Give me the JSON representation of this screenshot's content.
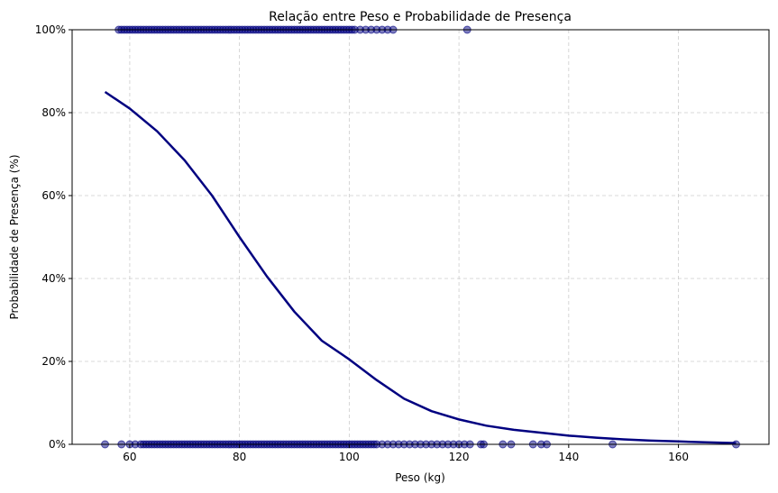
{
  "chart_data": {
    "type": "scatter",
    "title": "Relação entre Peso e Probabilidade de Presença",
    "xlabel": "Peso (kg)",
    "ylabel": "Probabilidade de Presença (%)",
    "xlim": [
      49.5,
      176.5
    ],
    "ylim": [
      0,
      1
    ],
    "x_ticks": [
      60,
      80,
      100,
      120,
      140,
      160
    ],
    "x_tick_labels": [
      "60",
      "80",
      "100",
      "120",
      "140",
      "160"
    ],
    "y_ticks": [
      0,
      0.2,
      0.4,
      0.6,
      0.8,
      1.0
    ],
    "y_tick_labels": [
      "0%",
      "20%",
      "40%",
      "60%",
      "80%",
      "100%"
    ],
    "grid": true,
    "colors": {
      "points": "#000080",
      "curve": "#000080",
      "grid": "#cccccc"
    },
    "series": [
      {
        "type": "scatter",
        "y": 1,
        "x": [
          58,
          58.5,
          59,
          59.5,
          60,
          60.5,
          61,
          61.5,
          62,
          62.5,
          63,
          63.5,
          64,
          64.5,
          65,
          65.5,
          66,
          66.5,
          67,
          67.5,
          68,
          68.5,
          69,
          69.5,
          70,
          70.5,
          71,
          71.5,
          72,
          72.5,
          73,
          73.5,
          74,
          74.5,
          75,
          75.5,
          76,
          76.5,
          77,
          77.5,
          78,
          78.5,
          79,
          79.5,
          80,
          80.5,
          81,
          81.5,
          82,
          82.5,
          83,
          83.5,
          84,
          84.5,
          85,
          85.5,
          86,
          86.5,
          87,
          87.5,
          88,
          88.5,
          89,
          89.5,
          90,
          90.5,
          91,
          91.5,
          92,
          92.5,
          93,
          93.5,
          94,
          94.5,
          95,
          95.5,
          96,
          96.5,
          97,
          97.5,
          98,
          98.5,
          99,
          99.5,
          100,
          100.5,
          101,
          102,
          103,
          104,
          105,
          106,
          107,
          108,
          121.5
        ]
      },
      {
        "type": "scatter",
        "y": 0,
        "x": [
          55.5,
          58.5,
          60,
          61,
          62,
          62.5,
          63,
          63.5,
          64,
          64.5,
          65,
          65.5,
          66,
          66.5,
          67,
          67.5,
          68,
          68.5,
          69,
          69.5,
          70,
          70.5,
          71,
          71.5,
          72,
          72.5,
          73,
          73.5,
          74,
          74.5,
          75,
          75.5,
          76,
          76.5,
          77,
          77.5,
          78,
          78.5,
          79,
          79.5,
          80,
          80.5,
          81,
          81.5,
          82,
          82.5,
          83,
          83.5,
          84,
          84.5,
          85,
          85.5,
          86,
          86.5,
          87,
          87.5,
          88,
          88.5,
          89,
          89.5,
          90,
          90.5,
          91,
          91.5,
          92,
          92.5,
          93,
          93.5,
          94,
          94.5,
          95,
          95.5,
          96,
          96.5,
          97,
          97.5,
          98,
          98.5,
          99,
          99.5,
          100,
          100.5,
          101,
          101.5,
          102,
          102.5,
          103,
          103.5,
          104,
          104.5,
          105,
          106,
          107,
          108,
          109,
          110,
          111,
          112,
          113,
          114,
          115,
          116,
          117,
          118,
          119,
          120,
          121,
          122,
          124,
          124.5,
          128,
          129.5,
          133.5,
          135,
          136,
          148,
          170.5
        ]
      },
      {
        "type": "line",
        "x": [
          55.5,
          60,
          65,
          70,
          75,
          80,
          85,
          90,
          95,
          100,
          105,
          110,
          115,
          120,
          125,
          130,
          135,
          140,
          145,
          150,
          155,
          160,
          165,
          170.5
        ],
        "y": [
          0.85,
          0.81,
          0.755,
          0.685,
          0.6,
          0.5,
          0.405,
          0.32,
          0.25,
          0.205,
          0.155,
          0.11,
          0.08,
          0.06,
          0.045,
          0.035,
          0.028,
          0.021,
          0.016,
          0.012,
          0.009,
          0.007,
          0.005,
          0.003
        ]
      }
    ]
  }
}
